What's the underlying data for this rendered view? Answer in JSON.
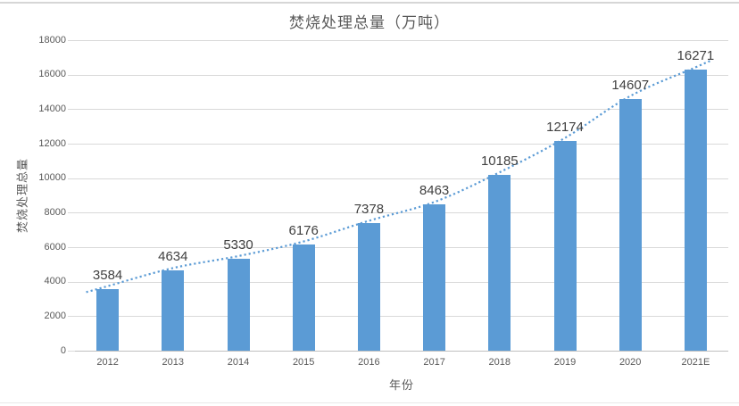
{
  "title": "焚烧处理总量（万吨）",
  "chart_data": {
    "type": "bar",
    "title": "焚烧处理总量（万吨）",
    "categories": [
      "2012",
      "2013",
      "2014",
      "2015",
      "2016",
      "2017",
      "2018",
      "2019",
      "2020",
      "2021E"
    ],
    "values": [
      3584,
      4634,
      5330,
      6176,
      7378,
      8463,
      10185,
      12174,
      14607,
      16271
    ],
    "data_labels_shown": true,
    "xlabel": "年份",
    "ylabel": "焚烧处理总量",
    "ylim": [
      0,
      18000
    ],
    "yticks": [
      0,
      2000,
      4000,
      6000,
      8000,
      10000,
      12000,
      14000,
      16000,
      18000
    ],
    "grid": true,
    "legend": "none",
    "bar_color": "#5b9bd5",
    "trendline": {
      "style": "dotted",
      "color": "#5b9bd5"
    },
    "gridline_color": "#d9d9d9",
    "axis_text_color": "#595959",
    "label_text_color": "#404040"
  }
}
